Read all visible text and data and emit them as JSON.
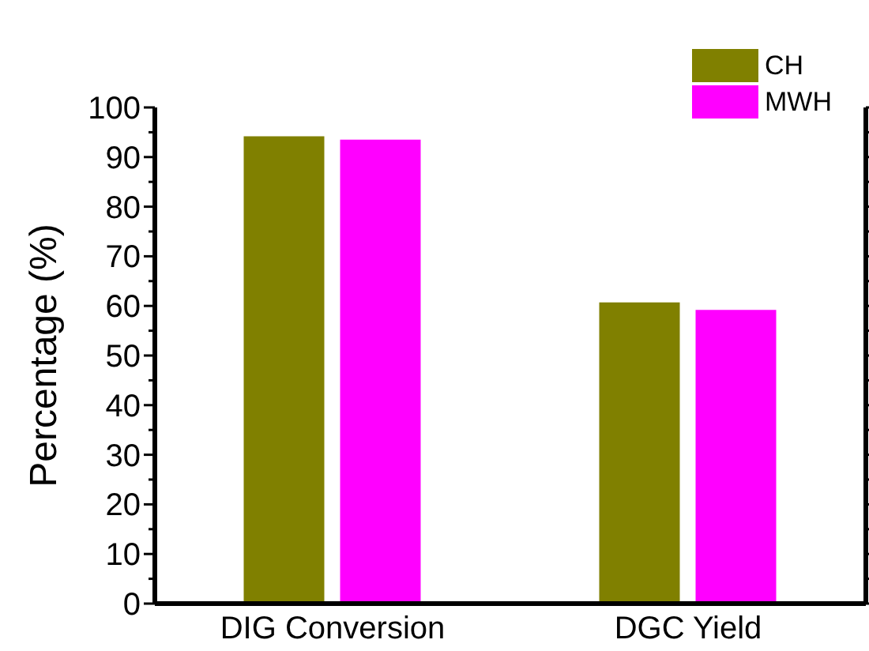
{
  "chart_data": {
    "type": "bar",
    "ylabel": "Percentage (%)",
    "categories": [
      "DIG Conversion",
      "DGC Yield"
    ],
    "series": [
      {
        "name": "CH",
        "color": "#808000",
        "values": [
          94.2,
          60.7
        ]
      },
      {
        "name": "MWH",
        "color": "#ff00ff",
        "values": [
          93.5,
          59.2
        ]
      }
    ],
    "ylim": [
      0,
      100
    ],
    "yticks": [
      0,
      {
        "value": 5,
        "label": null
      },
      10,
      {
        "value": 15,
        "label": null
      },
      20,
      {
        "value": 25,
        "label": null
      },
      30,
      {
        "value": 35,
        "label": null
      },
      40,
      {
        "value": 45,
        "label": null
      },
      50,
      {
        "value": 55,
        "label": null
      },
      60,
      {
        "value": 65,
        "label": null
      },
      70,
      {
        "value": 75,
        "label": null
      },
      80,
      {
        "value": 85,
        "label": null
      },
      90,
      {
        "value": 95,
        "label": null
      },
      100
    ],
    "grid": false,
    "legend": "top right"
  }
}
